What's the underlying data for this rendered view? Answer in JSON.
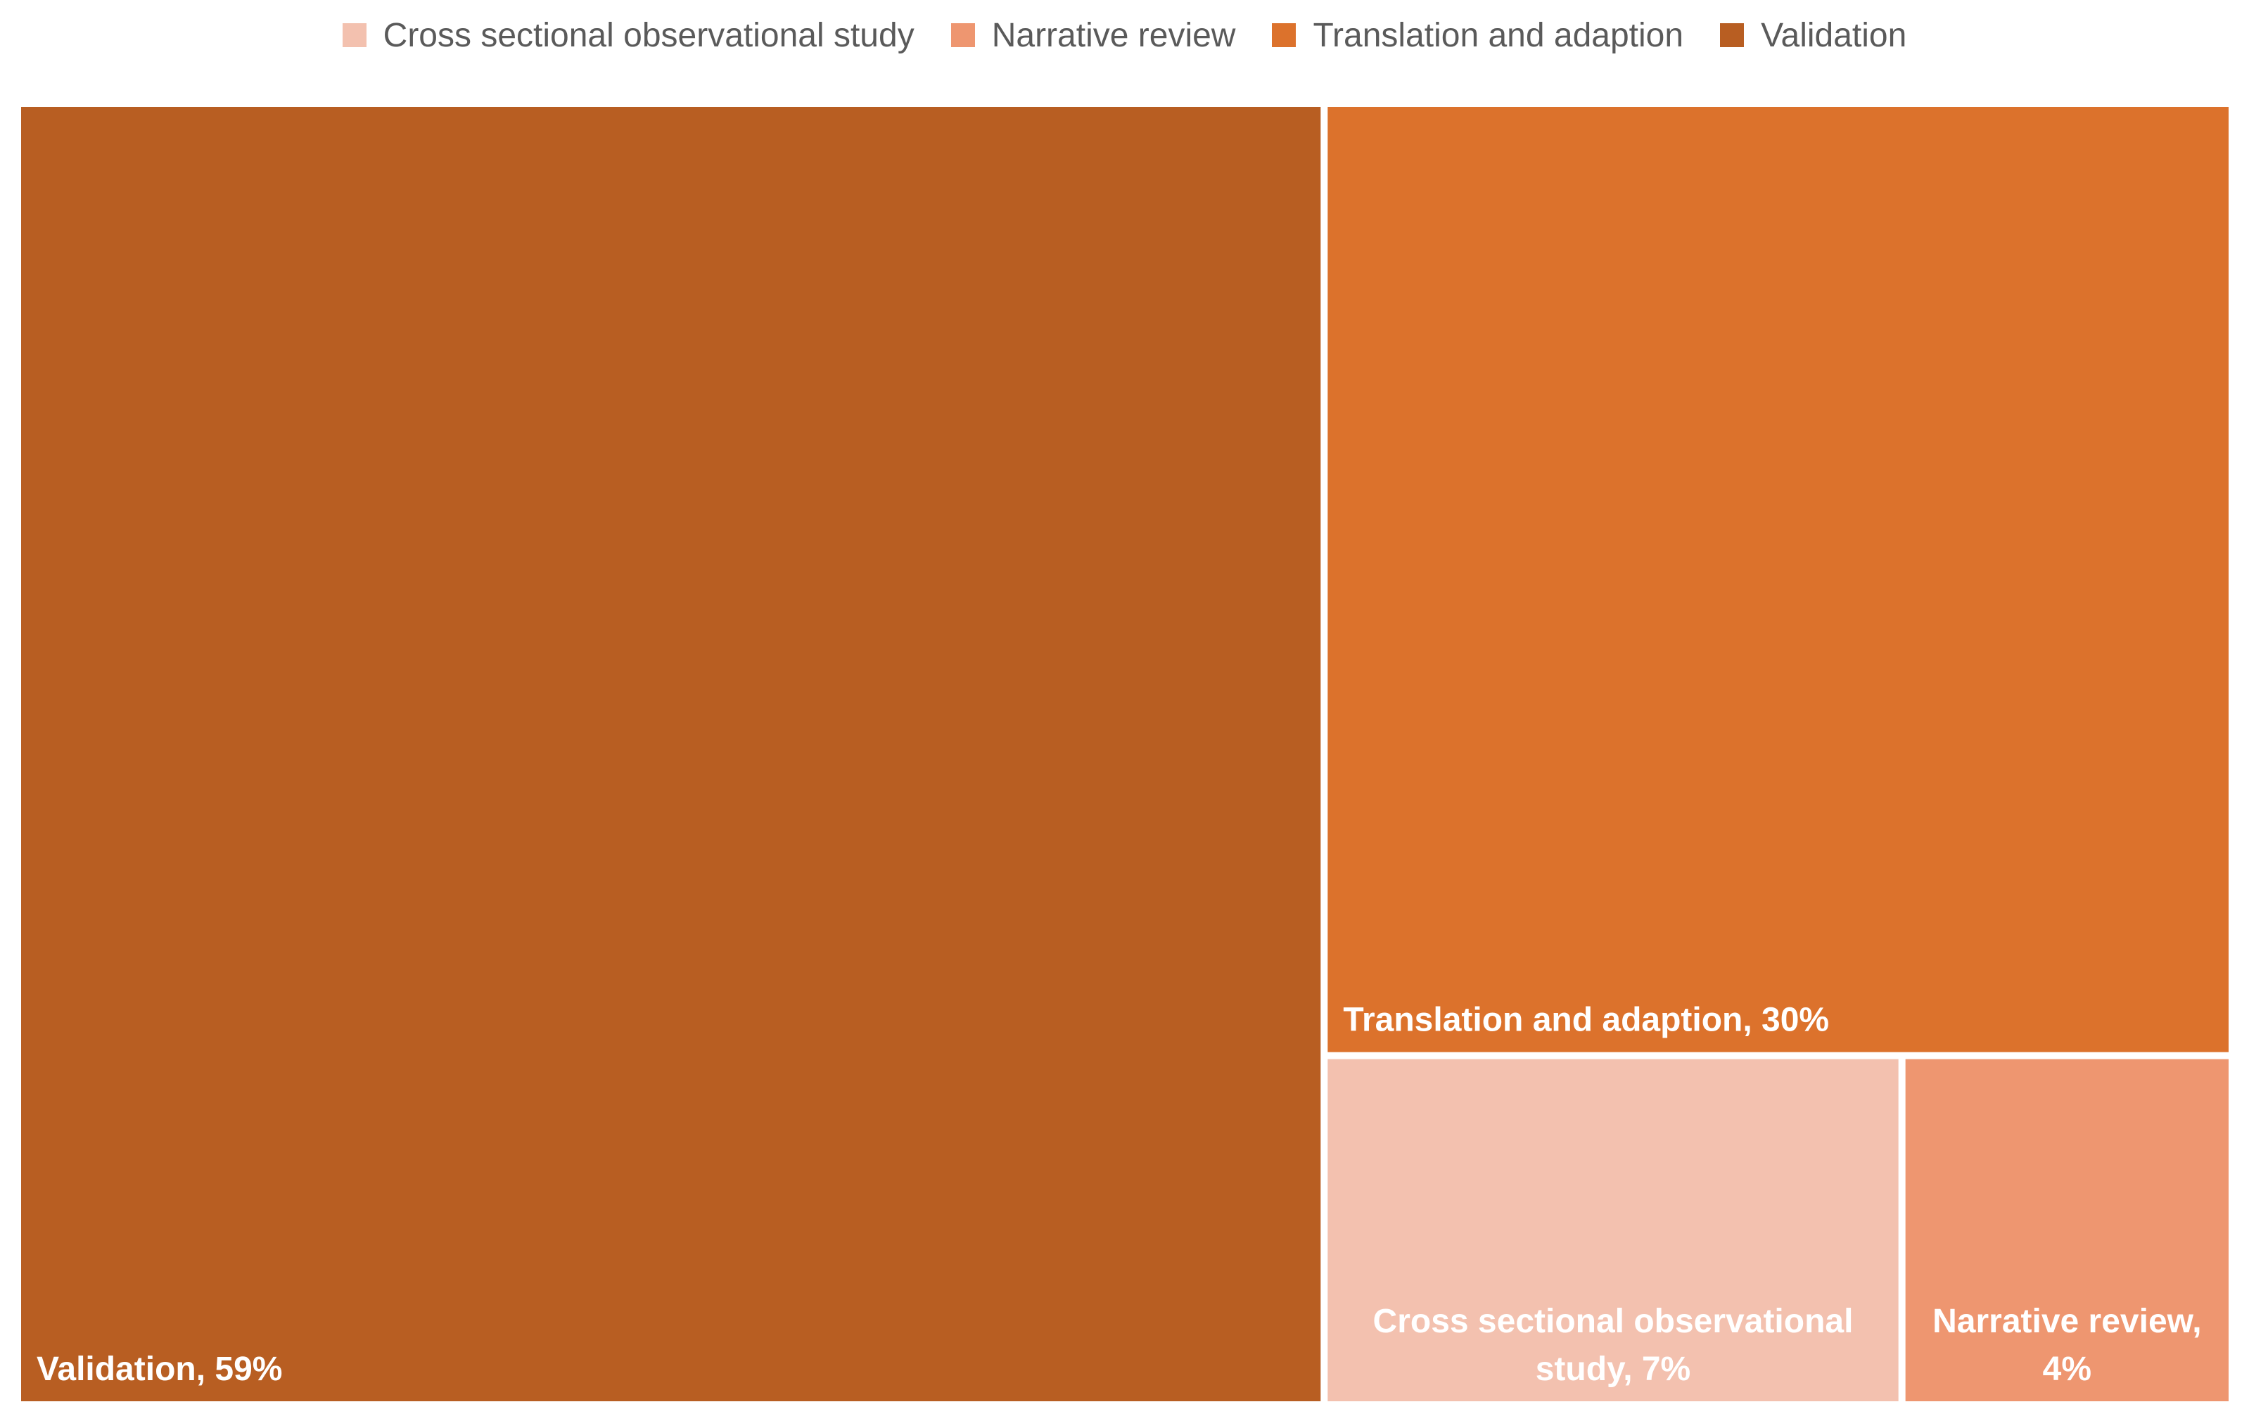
{
  "chart_data": {
    "type": "treemap",
    "title": "",
    "legend_position": "top",
    "legend": [
      {
        "label": "Cross sectional observational study",
        "color": "#F3C1AF"
      },
      {
        "label": "Narrative review",
        "color": "#EE9670"
      },
      {
        "label": "Translation and adaption",
        "color": "#DC722C"
      },
      {
        "label": "Validation",
        "color": "#B85E22"
      }
    ],
    "items": [
      {
        "name": "Validation",
        "value": 59,
        "color": "#B85E22",
        "label_lines": [
          "Validation, 59%"
        ],
        "label_align": "left"
      },
      {
        "name": "Translation and adaption",
        "value": 30,
        "color": "#DC722C",
        "label_lines": [
          "Translation and adaption, 30%"
        ],
        "label_align": "left"
      },
      {
        "name": "Cross sectional observational study",
        "value": 7,
        "color": "#F3C1AF",
        "label_lines": [
          "Cross sectional observational",
          "study, 7%"
        ],
        "label_align": "center"
      },
      {
        "name": "Narrative review",
        "value": 4,
        "color": "#EE9670",
        "label_lines": [
          "Narrative review,",
          "4%"
        ],
        "label_align": "center"
      }
    ]
  }
}
